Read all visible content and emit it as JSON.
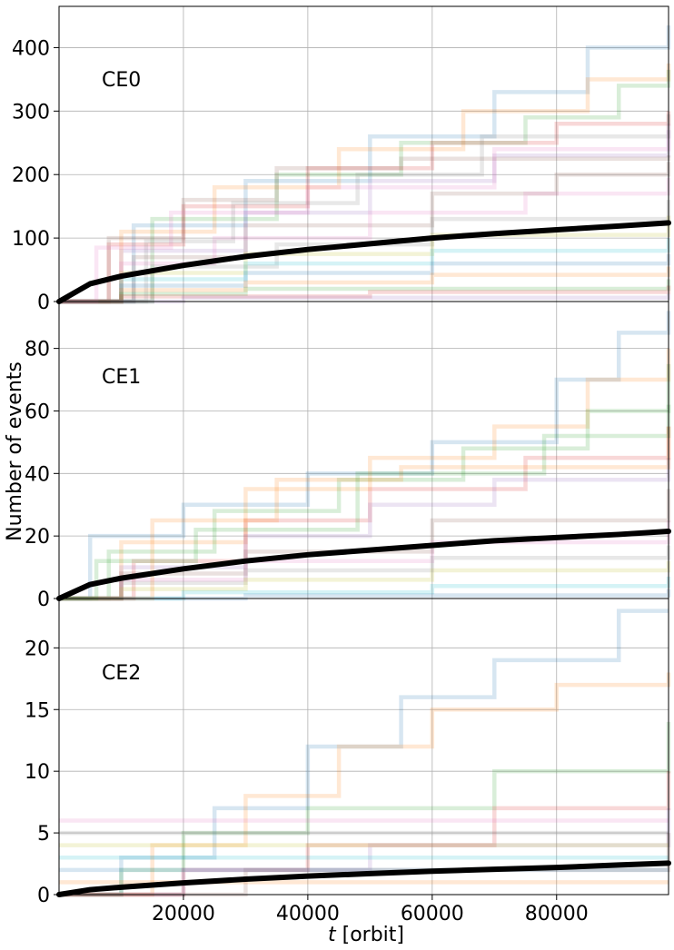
{
  "chart_data": {
    "type": "line",
    "ylabel": "Number of events",
    "xlabel_italic": "t",
    "xlabel_rest": " [orbit]",
    "xlim": [
      0,
      98000
    ],
    "x_ticks": [
      20000,
      40000,
      60000,
      80000
    ],
    "x_tick_labels": [
      "20000",
      "40000",
      "60000",
      "80000"
    ],
    "grid": true,
    "mean_color": "#000000",
    "trajectory_palette": [
      "#1f77b4",
      "#ff7f0e",
      "#2ca02c",
      "#d62728",
      "#9467bd",
      "#8c564b",
      "#e377c2",
      "#7f7f7f",
      "#bcbd22",
      "#17becf"
    ],
    "panels": [
      {
        "label": "CE0",
        "ylim": [
          0,
          465
        ],
        "y_ticks": [
          0,
          100,
          200,
          300,
          400
        ],
        "y_tick_labels": [
          "0",
          "100",
          "200",
          "300",
          "400"
        ],
        "mean_series": {
          "x": [
            0,
            5000,
            10000,
            20000,
            30000,
            40000,
            50000,
            60000,
            70000,
            80000,
            90000,
            98000
          ],
          "y": [
            0,
            28,
            40,
            57,
            71,
            82,
            91,
            100,
            107,
            113,
            119,
            124
          ]
        },
        "trajectories": [
          {
            "x": [
              0,
              12000,
              30000,
              50000,
              70000,
              85000,
              98000
            ],
            "y": [
              0,
              120,
              190,
              260,
              330,
              400,
              435
            ]
          },
          {
            "x": [
              0,
              10000,
              25000,
              45000,
              65000,
              85000,
              98000
            ],
            "y": [
              0,
              110,
              180,
              240,
              300,
              350,
              375
            ]
          },
          {
            "x": [
              0,
              15000,
              35000,
              55000,
              75000,
              90000,
              98000
            ],
            "y": [
              0,
              130,
              200,
              250,
              290,
              340,
              365
            ]
          },
          {
            "x": [
              0,
              8000,
              20000,
              40000,
              60000,
              80000,
              98000
            ],
            "y": [
              0,
              90,
              150,
              210,
              250,
              280,
              300
            ]
          },
          {
            "x": [
              0,
              10000,
              30000,
              50000,
              70000,
              98000
            ],
            "y": [
              0,
              80,
              140,
              190,
              230,
              270
            ]
          },
          {
            "x": [
              0,
              12000,
              30000,
              60000,
              80000,
              98000
            ],
            "y": [
              0,
              70,
              120,
              170,
              200,
              220
            ]
          },
          {
            "x": [
              0,
              10000,
              25000,
              50000,
              75000,
              98000
            ],
            "y": [
              0,
              60,
              100,
              140,
              170,
              195
            ]
          },
          {
            "x": [
              0,
              15000,
              35000,
              60000,
              98000
            ],
            "y": [
              0,
              55,
              90,
              130,
              160
            ]
          },
          {
            "x": [
              0,
              10000,
              30000,
              60000,
              98000
            ],
            "y": [
              0,
              45,
              75,
              105,
              135
            ]
          },
          {
            "x": [
              0,
              10000,
              30000,
              60000,
              98000
            ],
            "y": [
              0,
              35,
              60,
              80,
              100
            ]
          },
          {
            "x": [
              0,
              10000,
              30000,
              60000,
              98000
            ],
            "y": [
              0,
              25,
              45,
              60,
              75
            ]
          },
          {
            "x": [
              0,
              10000,
              30000,
              60000,
              98000
            ],
            "y": [
              0,
              18,
              30,
              42,
              55
            ]
          },
          {
            "x": [
              0,
              10000,
              30000,
              98000
            ],
            "y": [
              0,
              12,
              20,
              35
            ]
          },
          {
            "x": [
              0,
              10000,
              50000,
              98000
            ],
            "y": [
              0,
              8,
              15,
              25
            ]
          },
          {
            "x": [
              0,
              20000,
              98000
            ],
            "y": [
              0,
              6,
              12
            ]
          },
          {
            "x": [
              0,
              8000,
              20000,
              35000,
              55000,
              98000
            ],
            "y": [
              0,
              100,
              160,
              210,
              225,
              230
            ]
          },
          {
            "x": [
              0,
              6000,
              18000,
              40000,
              70000,
              98000
            ],
            "y": [
              0,
              85,
              140,
              180,
              240,
              280
            ]
          },
          {
            "x": [
              0,
              14000,
              28000,
              48000,
              68000,
              98000
            ],
            "y": [
              0,
              95,
              155,
              200,
              260,
              295
            ]
          }
        ]
      },
      {
        "label": "CE1",
        "ylim": [
          0,
          95
        ],
        "y_ticks": [
          0,
          20,
          40,
          60,
          80
        ],
        "y_tick_labels": [
          "0",
          "20",
          "40",
          "60",
          "80"
        ],
        "mean_series": {
          "x": [
            0,
            5000,
            10000,
            20000,
            30000,
            40000,
            50000,
            60000,
            70000,
            80000,
            90000,
            98000
          ],
          "y": [
            0,
            4.5,
            6.5,
            9.5,
            12,
            14,
            15.5,
            17,
            18.5,
            19.5,
            20.5,
            21.5
          ]
        },
        "trajectories": [
          {
            "x": [
              0,
              5000,
              20000,
              40000,
              60000,
              80000,
              90000,
              98000
            ],
            "y": [
              0,
              20,
              30,
              40,
              50,
              70,
              85,
              92
            ]
          },
          {
            "x": [
              0,
              10000,
              30000,
              50000,
              70000,
              85000,
              98000
            ],
            "y": [
              0,
              18,
              35,
              45,
              55,
              70,
              80
            ]
          },
          {
            "x": [
              0,
              8000,
              25000,
              45000,
              65000,
              85000,
              98000
            ],
            "y": [
              0,
              15,
              28,
              38,
              48,
              60,
              75
            ]
          },
          {
            "x": [
              0,
              12000,
              30000,
              50000,
              75000,
              98000
            ],
            "y": [
              0,
              12,
              25,
              35,
              45,
              55
            ]
          },
          {
            "x": [
              0,
              10000,
              30000,
              50000,
              70000,
              98000
            ],
            "y": [
              0,
              10,
              20,
              30,
              38,
              45
            ]
          },
          {
            "x": [
              0,
              10000,
              30000,
              60000,
              98000
            ],
            "y": [
              0,
              8,
              15,
              25,
              35
            ]
          },
          {
            "x": [
              0,
              10000,
              30000,
              60000,
              98000
            ],
            "y": [
              0,
              6,
              12,
              18,
              25
            ]
          },
          {
            "x": [
              0,
              10000,
              30000,
              60000,
              98000
            ],
            "y": [
              0,
              5,
              9,
              13,
              17
            ]
          },
          {
            "x": [
              0,
              10000,
              30000,
              60000,
              98000
            ],
            "y": [
              0,
              3,
              6,
              9,
              12
            ]
          },
          {
            "x": [
              0,
              20000,
              60000,
              98000
            ],
            "y": [
              0,
              2,
              4,
              7
            ]
          },
          {
            "x": [
              0,
              30000,
              98000
            ],
            "y": [
              0,
              1,
              3
            ]
          },
          {
            "x": [
              0,
              15000,
              35000,
              55000,
              98000
            ],
            "y": [
              0,
              25,
              38,
              42,
              55
            ]
          },
          {
            "x": [
              0,
              6000,
              22000,
              48000,
              78000,
              98000
            ],
            "y": [
              0,
              12,
              22,
              40,
              52,
              62
            ]
          }
        ]
      },
      {
        "label": "CE2",
        "ylim": [
          0,
          24
        ],
        "y_ticks": [
          0,
          5,
          10,
          15,
          20
        ],
        "y_tick_labels": [
          "0",
          "5",
          "10",
          "15",
          "20"
        ],
        "mean_series": {
          "x": [
            0,
            5000,
            10000,
            20000,
            30000,
            40000,
            50000,
            60000,
            70000,
            80000,
            90000,
            98000
          ],
          "y": [
            0,
            0.4,
            0.6,
            0.95,
            1.25,
            1.5,
            1.7,
            1.9,
            2.05,
            2.2,
            2.4,
            2.55
          ]
        },
        "trajectories": [
          {
            "x": [
              0,
              10000,
              25000,
              40000,
              55000,
              70000,
              90000,
              98000
            ],
            "y": [
              0,
              3,
              7,
              12,
              16,
              19,
              23,
              23
            ]
          },
          {
            "x": [
              0,
              15000,
              30000,
              45000,
              60000,
              80000,
              98000
            ],
            "y": [
              0,
              4,
              8,
              12,
              15,
              17,
              18
            ]
          },
          {
            "x": [
              0,
              10000,
              20000,
              40000,
              70000,
              98000
            ],
            "y": [
              0,
              2,
              5,
              7,
              10,
              14
            ]
          },
          {
            "x": [
              0,
              20000,
              40000,
              70000,
              98000
            ],
            "y": [
              0,
              2,
              4,
              7,
              10
            ]
          },
          {
            "x": [
              0,
              20000,
              50000,
              98000
            ],
            "y": [
              0,
              2,
              4,
              7
            ]
          },
          {
            "x": [
              0,
              30000,
              98000
            ],
            "y": [
              0,
              2,
              5
            ]
          },
          {
            "x": [
              0,
              98000
            ],
            "y": [
              6,
              6
            ]
          },
          {
            "x": [
              0,
              98000
            ],
            "y": [
              5,
              5
            ]
          },
          {
            "x": [
              0,
              98000
            ],
            "y": [
              4,
              4
            ]
          },
          {
            "x": [
              0,
              98000
            ],
            "y": [
              3,
              3
            ]
          },
          {
            "x": [
              0,
              98000
            ],
            "y": [
              2,
              2
            ]
          },
          {
            "x": [
              0,
              98000
            ],
            "y": [
              1,
              1
            ]
          }
        ]
      }
    ]
  }
}
